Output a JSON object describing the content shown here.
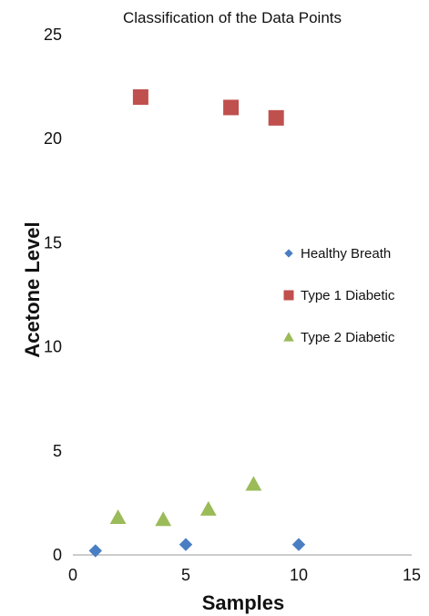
{
  "chart_data": {
    "type": "scatter",
    "title": "Classification of the Data Points",
    "xlabel": "Samples",
    "ylabel": "Acetone Level",
    "xlim": [
      0,
      15
    ],
    "ylim": [
      0,
      25
    ],
    "x_ticks": [
      "0",
      "5",
      "10",
      "15"
    ],
    "y_ticks": [
      "0",
      "5",
      "10",
      "15",
      "20",
      "25"
    ],
    "grid": false,
    "legend_position": "right",
    "series": [
      {
        "name": "Healthy Breath",
        "marker": "diamond",
        "color": "#4A7EC3",
        "x": [
          1,
          5,
          10
        ],
        "y": [
          0.2,
          0.5,
          0.5
        ]
      },
      {
        "name": "Type 1 Diabetic",
        "marker": "square",
        "color": "#C0504D",
        "x": [
          3,
          7,
          9
        ],
        "y": [
          22,
          21.5,
          21
        ]
      },
      {
        "name": "Type 2 Diabetic",
        "marker": "triangle",
        "color": "#9BBB59",
        "x": [
          2,
          4,
          6,
          8
        ],
        "y": [
          1.8,
          1.7,
          2.2,
          3.4
        ]
      }
    ]
  }
}
